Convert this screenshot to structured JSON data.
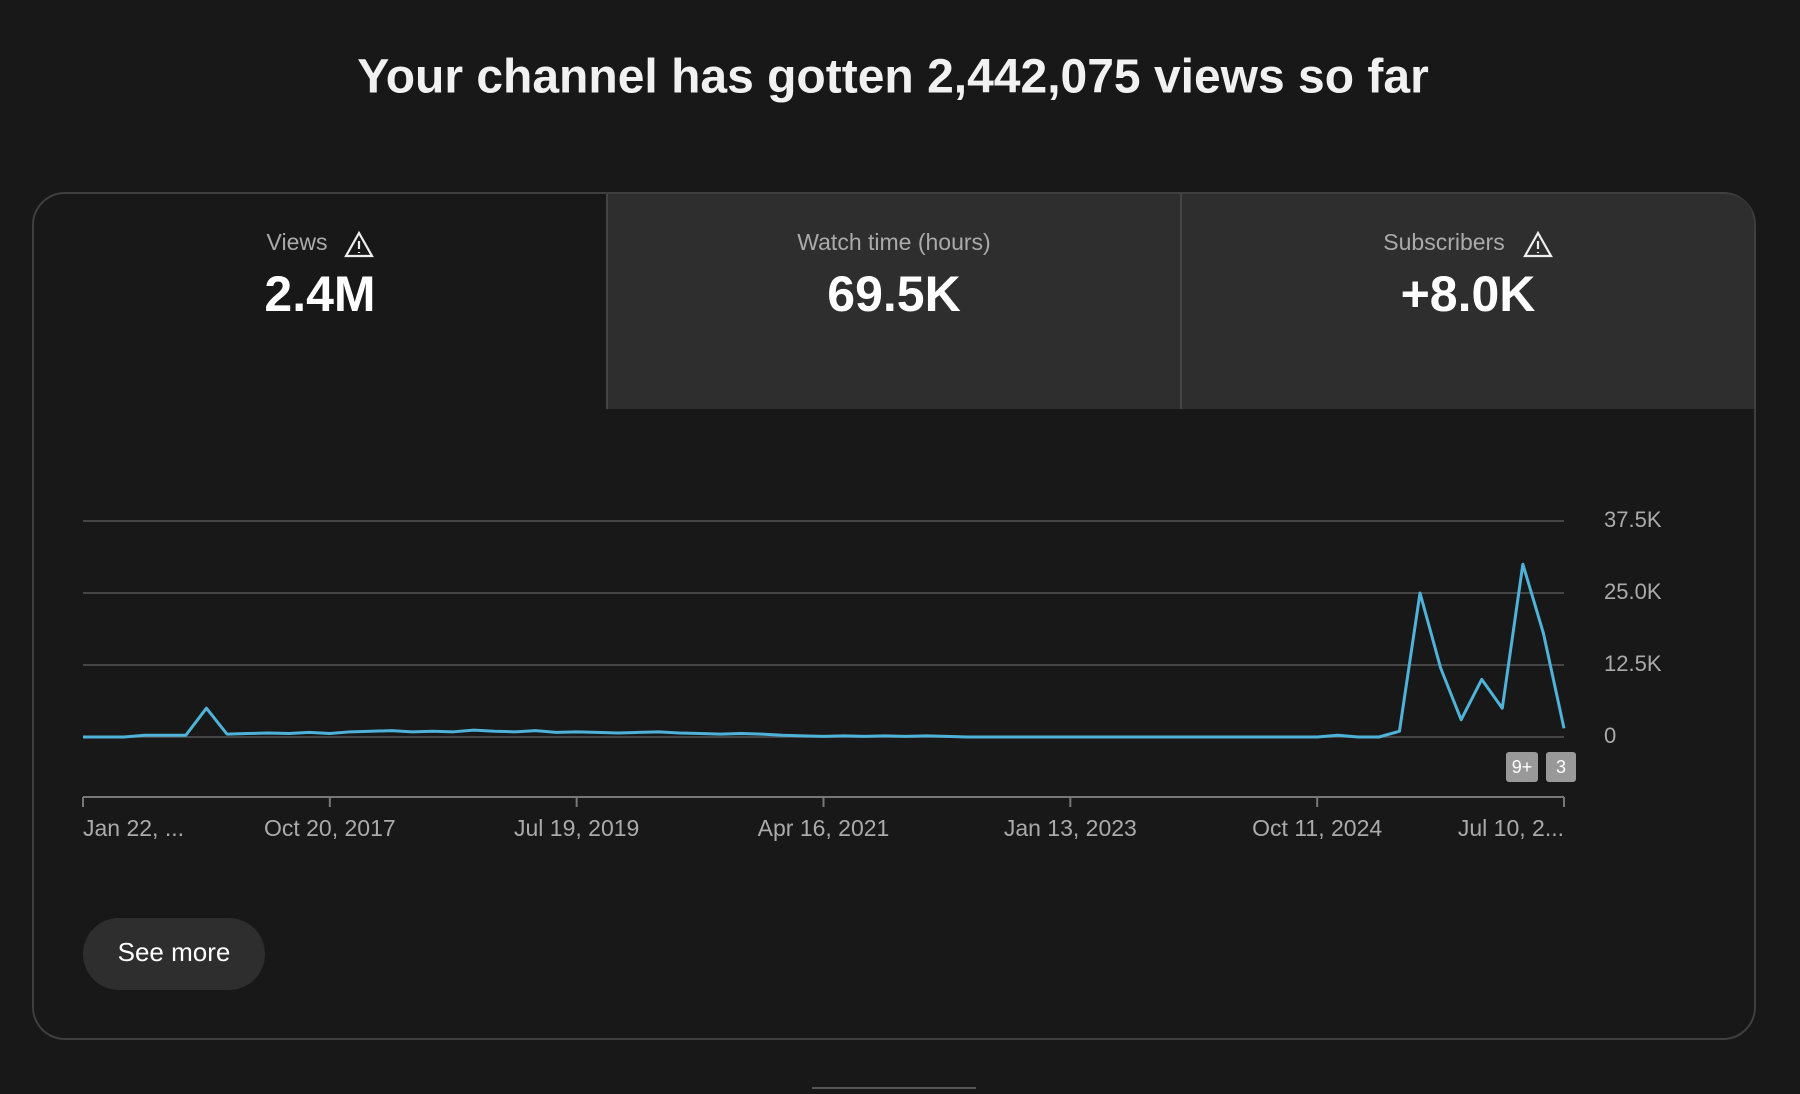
{
  "header": {
    "title": "Your channel has gotten 2,442,075 views so far"
  },
  "tabs": [
    {
      "label": "Views",
      "value": "2.4M"
    },
    {
      "label": "Watch time (hours)",
      "value": "69.5K"
    },
    {
      "label": "Subscribers",
      "value": "+8.0K"
    }
  ],
  "chart_data": {
    "type": "line",
    "color": "#4fb3d9",
    "grid": true,
    "categories": [
      "Jan 22, ...",
      null,
      null,
      null,
      null,
      null,
      null,
      null,
      null,
      null,
      null,
      null,
      "Oct 20, 2017",
      null,
      null,
      null,
      null,
      null,
      null,
      null,
      null,
      null,
      null,
      null,
      "Jul 19, 2019",
      null,
      null,
      null,
      null,
      null,
      null,
      null,
      null,
      null,
      null,
      null,
      "Apr 16, 2021",
      null,
      null,
      null,
      null,
      null,
      null,
      null,
      null,
      null,
      null,
      null,
      "Jan 13, 2023",
      null,
      null,
      null,
      null,
      null,
      null,
      null,
      null,
      null,
      null,
      null,
      "Oct 11, 2024",
      null,
      null,
      null,
      null,
      null,
      null,
      null,
      null,
      null,
      null,
      null,
      "Jul 10, 2..."
    ],
    "values": [
      0,
      0,
      0,
      300,
      300,
      300,
      5000,
      500,
      600,
      700,
      600,
      800,
      600,
      900,
      1000,
      1100,
      900,
      1000,
      900,
      1200,
      1000,
      900,
      1100,
      800,
      900,
      800,
      700,
      800,
      900,
      700,
      600,
      500,
      600,
      500,
      300,
      200,
      100,
      200,
      100,
      200,
      100,
      200,
      100,
      0,
      0,
      0,
      0,
      0,
      0,
      0,
      0,
      0,
      0,
      0,
      0,
      0,
      0,
      0,
      0,
      0,
      0,
      300,
      0,
      0,
      1000,
      25000,
      12000,
      3000,
      10000,
      5000,
      30000,
      18000,
      1500
    ],
    "ylim": [
      0,
      37500
    ],
    "yticks": [
      0,
      {
        "value": 12500,
        "label": "12.5K"
      },
      {
        "value": 25000,
        "label": "25.0K"
      },
      {
        "value": 37500,
        "label": "37.5K"
      }
    ],
    "annotations": [
      "9+",
      "3"
    ]
  },
  "button": {
    "label": "See more"
  }
}
